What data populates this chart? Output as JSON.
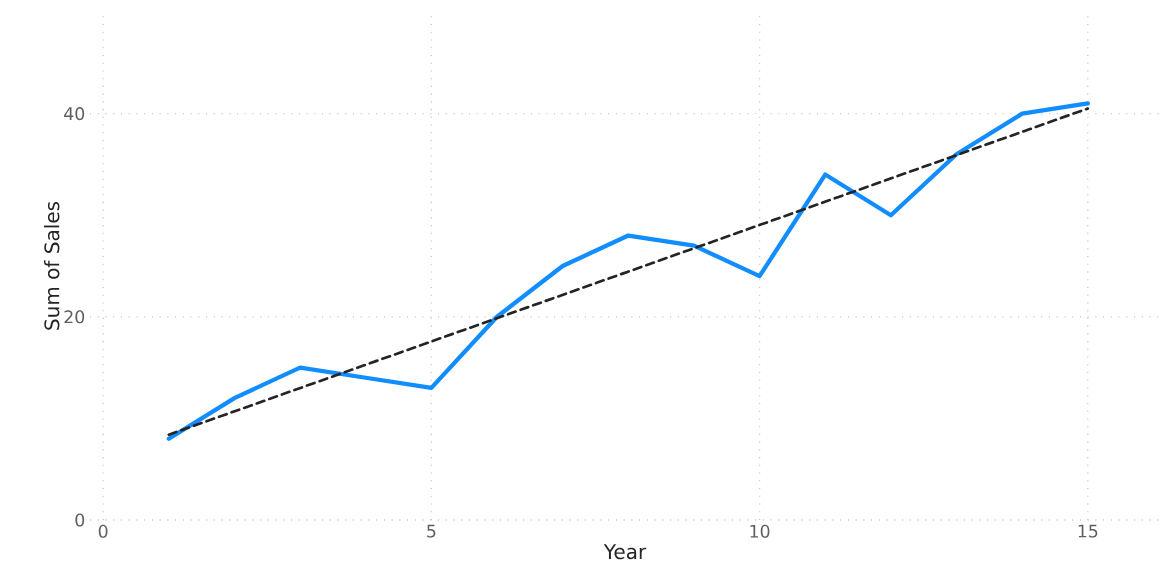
{
  "chart_data": {
    "type": "line",
    "xlabel": "Year",
    "ylabel": "Sum of Sales",
    "x": [
      1,
      2,
      3,
      4,
      5,
      6,
      7,
      8,
      9,
      10,
      11,
      12,
      13,
      14,
      15
    ],
    "series": [
      {
        "color": "#118dff",
        "values": [
          8,
          12,
          15,
          14,
          13,
          20,
          25,
          28,
          27,
          24,
          34,
          30,
          36,
          40,
          41
        ],
        "line_style": "solid"
      },
      {
        "type": "line",
        "x": [
          1,
          15
        ],
        "color": "#252423",
        "values": [
          8.4,
          40.5
        ],
        "line_style": "dashed"
      }
    ],
    "xlim": [
      -0.2,
      16.1
    ],
    "ylim": [
      0,
      50
    ],
    "xticks": [
      0,
      5,
      10,
      15
    ],
    "yticks": [
      0,
      20,
      40
    ],
    "grid": true
  }
}
